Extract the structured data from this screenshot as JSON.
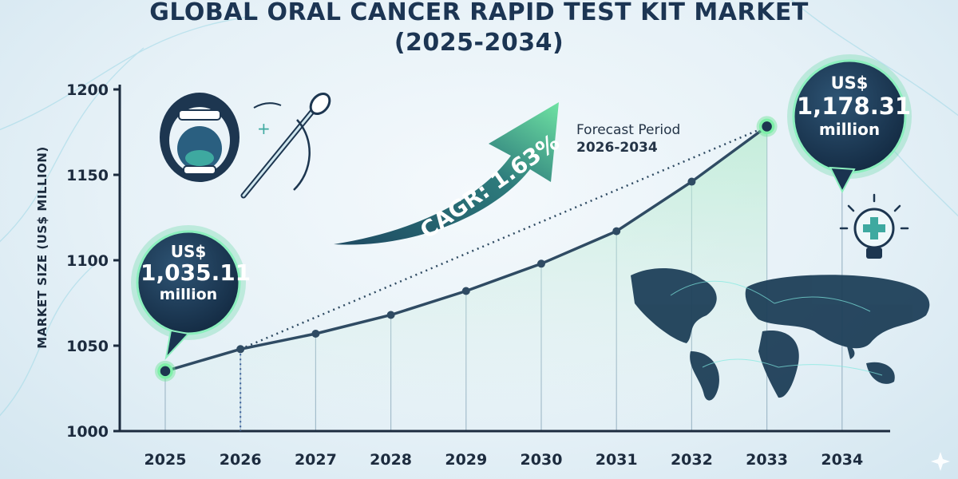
{
  "title_line1": "GLOBAL ORAL CANCER RAPID TEST KIT MARKET",
  "title_line2": "(2025-2034)",
  "forecast": {
    "label": "Forecast Period",
    "range": "2026-2034"
  },
  "cagr_label": "CAGR: 1.63%",
  "start_bubble": {
    "currency": "US$",
    "value": "1,035.11",
    "unit": "million"
  },
  "end_bubble": {
    "currency": "US$",
    "value": "1,178.31",
    "unit": "million"
  },
  "colors": {
    "line": "#2f4b63",
    "accent": "#55e08a",
    "dark": "#1d3650",
    "teal": "#3ea9a0"
  },
  "icons": [
    "mouth-icon",
    "swab-icon",
    "lightbulb-cross-icon",
    "world-map-icon"
  ],
  "chart_data": {
    "type": "line",
    "ylabel": "MARKET SIZE (US$ MILLION)",
    "xlabel": "",
    "ylim": [
      1000,
      1200
    ],
    "yticks": [
      1000,
      1050,
      1100,
      1150,
      1200
    ],
    "x": [
      "2025",
      "2026",
      "2027",
      "2028",
      "2029",
      "2030",
      "2031",
      "2032",
      "2033",
      "2034"
    ],
    "series": [
      {
        "values": [
          1035.11,
          1048,
          1057,
          1068,
          1082,
          1098,
          1117,
          1146,
          1178.31,
          null
        ]
      }
    ]
  }
}
